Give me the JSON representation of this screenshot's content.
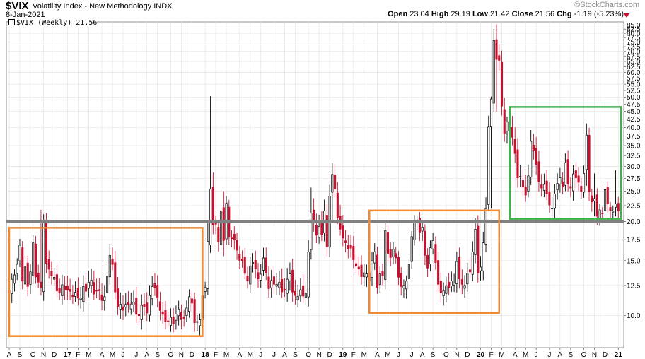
{
  "header": {
    "symbol": "$VIX",
    "name": "Volatility Index - New Methodology",
    "exchange": "INDX",
    "date": "8-Jan-2021",
    "brand": "©StockCharts.com",
    "open_label": "Open",
    "open": "23.04",
    "high_label": "High",
    "high": "29.19",
    "low_label": "Low",
    "low": "21.42",
    "close_label": "Close",
    "close": "21.56",
    "chg_label": "Chg",
    "chg": "-1.19 (-5.23%)"
  },
  "legend": {
    "text": "$VIX (Weekly) 21.56"
  },
  "colors": {
    "up": "#000000",
    "down": "#c8102e",
    "support_line": "#808080",
    "box_orange": "#f08a30",
    "box_green": "#3cb44b",
    "grid": "#e4e4e4"
  },
  "chart_data": {
    "type": "candlestick",
    "interval": "weekly",
    "y_scale": "log",
    "ylim": [
      7.9,
      87
    ],
    "y_ticks": [
      10.0,
      12.5,
      15.0,
      17.5,
      20.0,
      22.5,
      25.0,
      27.5,
      30.0,
      32.5,
      35.0,
      37.5,
      40.0,
      42.5,
      45.0,
      47.5,
      50.0,
      52.5,
      55.0,
      57.5,
      60.0,
      62.5,
      65.0,
      67.5,
      70.0,
      72.5,
      75.0,
      77.5,
      80.0,
      82.5,
      85.0
    ],
    "y_tick_labels": [
      "10.0",
      "12.5",
      "15.0",
      "17.5",
      "20.0",
      "22.5",
      "25.0",
      "27.5",
      "30.0",
      "32.5",
      "35.0",
      "37.5",
      "40.0",
      "42.5",
      "45.0",
      "47.5",
      "50.0",
      "52.5",
      "55.0",
      "57.5",
      "60.0",
      "62.5",
      "65.0",
      "67.5",
      "70.0",
      "72.5",
      "75.0",
      "77.5",
      "80.0",
      "82.5",
      "85.0"
    ],
    "x_labels": [
      {
        "label": "A",
        "week": 0,
        "bold": false
      },
      {
        "label": "S",
        "week": 4,
        "bold": false
      },
      {
        "label": "O",
        "week": 9,
        "bold": false
      },
      {
        "label": "N",
        "week": 13,
        "bold": false
      },
      {
        "label": "D",
        "week": 17,
        "bold": false
      },
      {
        "label": "17",
        "week": 22,
        "bold": true
      },
      {
        "label": "F",
        "week": 26,
        "bold": false
      },
      {
        "label": "M",
        "week": 30,
        "bold": false
      },
      {
        "label": "A",
        "week": 35,
        "bold": false
      },
      {
        "label": "M",
        "week": 39,
        "bold": false
      },
      {
        "label": "J",
        "week": 43,
        "bold": false
      },
      {
        "label": "J",
        "week": 48,
        "bold": false
      },
      {
        "label": "A",
        "week": 52,
        "bold": false
      },
      {
        "label": "S",
        "week": 56,
        "bold": false
      },
      {
        "label": "O",
        "week": 61,
        "bold": false
      },
      {
        "label": "N",
        "week": 65,
        "bold": false
      },
      {
        "label": "D",
        "week": 69,
        "bold": false
      },
      {
        "label": "18",
        "week": 74,
        "bold": true
      },
      {
        "label": "F",
        "week": 78,
        "bold": false
      },
      {
        "label": "M",
        "week": 82,
        "bold": false
      },
      {
        "label": "A",
        "week": 87,
        "bold": false
      },
      {
        "label": "M",
        "week": 91,
        "bold": false
      },
      {
        "label": "J",
        "week": 95,
        "bold": false
      },
      {
        "label": "J",
        "week": 100,
        "bold": false
      },
      {
        "label": "A",
        "week": 104,
        "bold": false
      },
      {
        "label": "S",
        "week": 108,
        "bold": false
      },
      {
        "label": "O",
        "week": 113,
        "bold": false
      },
      {
        "label": "N",
        "week": 117,
        "bold": false
      },
      {
        "label": "D",
        "week": 121,
        "bold": false
      },
      {
        "label": "19",
        "week": 126,
        "bold": true
      },
      {
        "label": "F",
        "week": 130,
        "bold": false
      },
      {
        "label": "M",
        "week": 134,
        "bold": false
      },
      {
        "label": "A",
        "week": 139,
        "bold": false
      },
      {
        "label": "M",
        "week": 143,
        "bold": false
      },
      {
        "label": "J",
        "week": 147,
        "bold": false
      },
      {
        "label": "J",
        "week": 152,
        "bold": false
      },
      {
        "label": "A",
        "week": 156,
        "bold": false
      },
      {
        "label": "S",
        "week": 160,
        "bold": false
      },
      {
        "label": "O",
        "week": 165,
        "bold": false
      },
      {
        "label": "N",
        "week": 169,
        "bold": false
      },
      {
        "label": "D",
        "week": 173,
        "bold": false
      },
      {
        "label": "20",
        "week": 178,
        "bold": true
      },
      {
        "label": "F",
        "week": 182,
        "bold": false
      },
      {
        "label": "M",
        "week": 186,
        "bold": false
      },
      {
        "label": "A",
        "week": 191,
        "bold": false
      },
      {
        "label": "M",
        "week": 195,
        "bold": false
      },
      {
        "label": "J",
        "week": 199,
        "bold": false
      },
      {
        "label": "J",
        "week": 204,
        "bold": false
      },
      {
        "label": "A",
        "week": 208,
        "bold": false
      },
      {
        "label": "S",
        "week": 212,
        "bold": false
      },
      {
        "label": "O",
        "week": 217,
        "bold": false
      },
      {
        "label": "N",
        "week": 221,
        "bold": false
      },
      {
        "label": "D",
        "week": 225,
        "bold": false
      },
      {
        "label": "21",
        "week": 230,
        "bold": true
      }
    ],
    "support_level": 20.0,
    "annotations": [
      {
        "type": "rect",
        "color": "orange",
        "week_start": 0,
        "week_end": 73,
        "y_low": 8.6,
        "y_high": 19.1
      },
      {
        "type": "rect",
        "color": "orange",
        "week_start": 136,
        "week_end": 185,
        "y_low": 10.2,
        "y_high": 21.7
      },
      {
        "type": "rect",
        "color": "green",
        "week_start": 189,
        "week_end": 231,
        "y_low": 20.4,
        "y_high": 46.5
      }
    ],
    "close_anchors": [
      [
        0,
        11.8
      ],
      [
        2,
        13.5
      ],
      [
        3,
        14.6
      ],
      [
        4,
        16.8
      ],
      [
        5,
        12.9
      ],
      [
        6,
        14.4
      ],
      [
        7,
        12.4
      ],
      [
        8,
        13.8
      ],
      [
        9,
        17.1
      ],
      [
        10,
        13.3
      ],
      [
        11,
        12.8
      ],
      [
        12,
        12.3
      ],
      [
        13,
        19.8
      ],
      [
        14,
        14.7
      ],
      [
        16,
        13.4
      ],
      [
        18,
        12.0
      ],
      [
        21,
        12.1
      ],
      [
        24,
        11.5
      ],
      [
        27,
        11.4
      ],
      [
        30,
        12.8
      ],
      [
        33,
        12.0
      ],
      [
        36,
        11.5
      ],
      [
        38,
        15.6
      ],
      [
        41,
        10.7
      ],
      [
        43,
        10.4
      ],
      [
        46,
        10.9
      ],
      [
        49,
        10.0
      ],
      [
        51,
        10.7
      ],
      [
        52,
        10.2
      ],
      [
        54,
        12.4
      ],
      [
        56,
        11.4
      ],
      [
        58,
        10.1
      ],
      [
        60,
        9.6
      ],
      [
        62,
        9.4
      ],
      [
        64,
        10.5
      ],
      [
        66,
        9.8
      ],
      [
        68,
        11.5
      ],
      [
        70,
        9.5
      ],
      [
        72,
        9.7
      ],
      [
        73,
        11.6
      ],
      [
        74,
        12.3
      ],
      [
        75,
        17.3
      ],
      [
        76,
        25.4
      ],
      [
        77,
        19.5
      ],
      [
        78,
        19.6
      ],
      [
        79,
        17.2
      ],
      [
        80,
        21.6
      ],
      [
        81,
        17.4
      ],
      [
        82,
        22.9
      ],
      [
        83,
        17.8
      ],
      [
        84,
        17.7
      ],
      [
        86,
        16.2
      ],
      [
        88,
        15.0
      ],
      [
        90,
        12.9
      ],
      [
        92,
        14.8
      ],
      [
        94,
        13.1
      ],
      [
        96,
        15.3
      ],
      [
        98,
        12.2
      ],
      [
        100,
        12.6
      ],
      [
        102,
        12.8
      ],
      [
        104,
        12.1
      ],
      [
        106,
        13.6
      ],
      [
        107,
        11.9
      ],
      [
        108,
        11.6
      ],
      [
        110,
        12.1
      ],
      [
        112,
        11.8
      ],
      [
        113,
        16.0
      ],
      [
        114,
        21.3
      ],
      [
        115,
        19.9
      ],
      [
        116,
        18.1
      ],
      [
        117,
        19.3
      ],
      [
        118,
        18.2
      ],
      [
        119,
        21.6
      ],
      [
        120,
        16.6
      ],
      [
        121,
        24.1
      ],
      [
        122,
        28.3
      ],
      [
        123,
        25.4
      ],
      [
        124,
        20.6
      ],
      [
        125,
        18.9
      ],
      [
        126,
        17.7
      ],
      [
        128,
        16.4
      ],
      [
        130,
        15.1
      ],
      [
        132,
        14.1
      ],
      [
        134,
        13.7
      ],
      [
        136,
        12.9
      ],
      [
        138,
        16.0
      ],
      [
        139,
        12.3
      ],
      [
        140,
        13.6
      ],
      [
        141,
        13.4
      ],
      [
        142,
        18.7
      ],
      [
        143,
        15.8
      ],
      [
        145,
        16.3
      ],
      [
        146,
        15.3
      ],
      [
        148,
        12.4
      ],
      [
        150,
        12.9
      ],
      [
        151,
        14.6
      ],
      [
        152,
        17.9
      ],
      [
        153,
        20.1
      ],
      [
        154,
        19.9
      ],
      [
        155,
        18.5
      ],
      [
        156,
        19.2
      ],
      [
        157,
        15.6
      ],
      [
        158,
        14.2
      ],
      [
        160,
        17.4
      ],
      [
        161,
        14.8
      ],
      [
        162,
        12.6
      ],
      [
        164,
        12.0
      ],
      [
        166,
        12.3
      ],
      [
        168,
        12.7
      ],
      [
        169,
        14.9
      ],
      [
        170,
        13.1
      ],
      [
        171,
        12.6
      ],
      [
        172,
        12.5
      ],
      [
        174,
        13.8
      ],
      [
        175,
        16.0
      ],
      [
        176,
        18.9
      ],
      [
        177,
        13.7
      ],
      [
        178,
        14.3
      ],
      [
        179,
        17.1
      ],
      [
        180,
        22.0
      ],
      [
        181,
        40.1
      ],
      [
        182,
        49.3
      ],
      [
        183,
        75.9
      ],
      [
        184,
        66.0
      ],
      [
        185,
        65.5
      ],
      [
        186,
        46.8
      ],
      [
        187,
        38.2
      ],
      [
        188,
        41.7
      ],
      [
        189,
        41.0
      ],
      [
        190,
        37.2
      ],
      [
        191,
        33.0
      ],
      [
        192,
        27.6
      ],
      [
        193,
        27.9
      ],
      [
        194,
        25.8
      ],
      [
        195,
        24.3
      ],
      [
        196,
        28.0
      ],
      [
        197,
        36.1
      ],
      [
        198,
        33.8
      ],
      [
        199,
        30.4
      ],
      [
        200,
        26.8
      ],
      [
        201,
        25.6
      ],
      [
        202,
        26.3
      ],
      [
        203,
        24.5
      ],
      [
        204,
        22.6
      ],
      [
        205,
        22.1
      ],
      [
        206,
        24.5
      ],
      [
        207,
        26.5
      ],
      [
        208,
        27.6
      ],
      [
        209,
        25.8
      ],
      [
        210,
        30.8
      ],
      [
        211,
        26.4
      ],
      [
        212,
        25.6
      ],
      [
        213,
        28.4
      ],
      [
        214,
        27.6
      ],
      [
        215,
        26.7
      ],
      [
        216,
        25.0
      ],
      [
        217,
        28.5
      ],
      [
        218,
        37.8
      ],
      [
        219,
        24.9
      ],
      [
        220,
        23.1
      ],
      [
        221,
        23.7
      ],
      [
        222,
        20.8
      ],
      [
        223,
        21.8
      ],
      [
        224,
        21.2
      ],
      [
        225,
        25.3
      ],
      [
        226,
        22.8
      ],
      [
        227,
        21.7
      ],
      [
        228,
        21.6
      ],
      [
        229,
        22.8
      ],
      [
        230,
        21.6
      ]
    ],
    "spikes": [
      [
        12,
        21.8,
        14.0
      ],
      [
        75,
        20.2,
        17.5
      ],
      [
        76,
        50.3,
        16.0
      ],
      [
        77,
        28.7,
        19.0
      ],
      [
        81,
        25.0,
        15.5
      ],
      [
        114,
        25.7,
        16.5
      ],
      [
        122,
        30.8,
        20.0
      ],
      [
        182,
        50.2,
        22.0
      ],
      [
        184,
        85.5,
        45.0
      ],
      [
        188,
        43.3,
        35.5
      ],
      [
        218,
        41.2,
        26.0
      ],
      [
        221,
        28.5,
        20.8
      ],
      [
        229,
        29.2,
        21.4
      ]
    ]
  }
}
